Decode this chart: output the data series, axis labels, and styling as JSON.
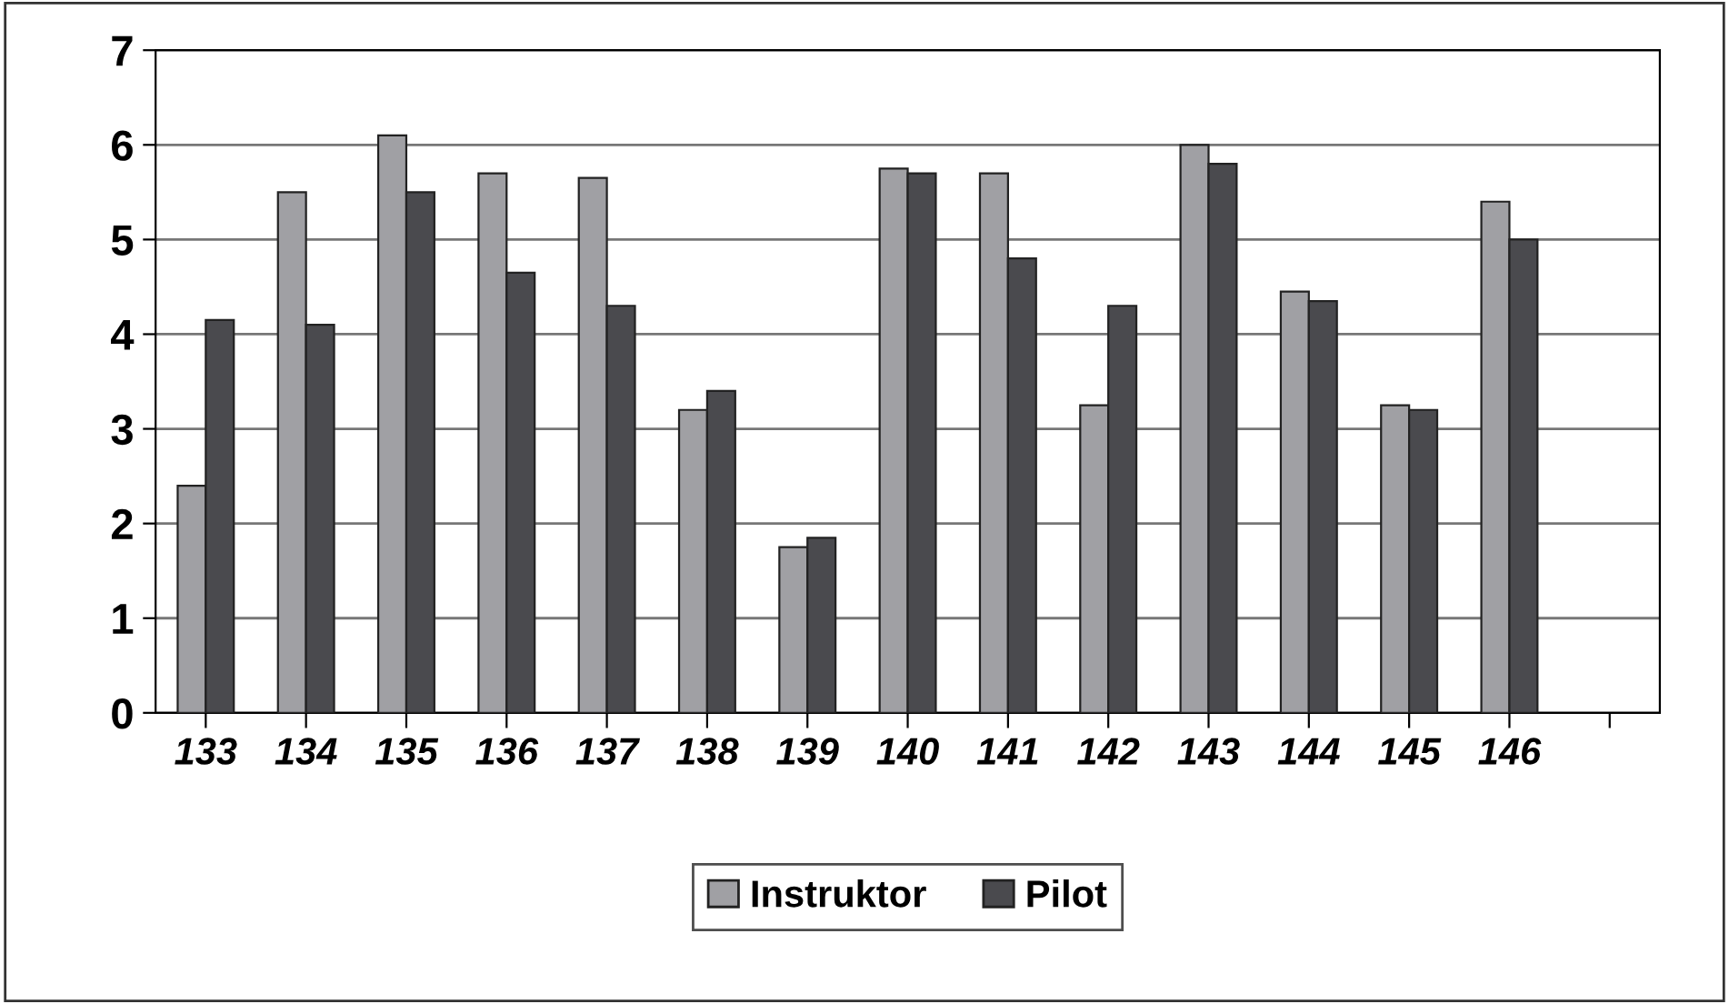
{
  "chart_data": {
    "type": "bar",
    "categories": [
      "133",
      "134",
      "135",
      "136",
      "137",
      "138",
      "139",
      "140",
      "141",
      "142",
      "143",
      "144",
      "145",
      "146",
      null
    ],
    "series": [
      {
        "name": "Instruktor",
        "color": "#a0a0a4",
        "values": [
          2.4,
          5.5,
          6.1,
          5.7,
          5.65,
          3.2,
          1.75,
          5.75,
          5.7,
          3.25,
          6.0,
          4.45,
          3.25,
          5.4,
          null
        ]
      },
      {
        "name": "Pilot",
        "color": "#4a4a4e",
        "values": [
          4.15,
          4.1,
          5.5,
          4.65,
          4.3,
          3.4,
          1.85,
          5.7,
          4.8,
          4.3,
          5.8,
          4.35,
          3.2,
          5.0,
          null
        ]
      }
    ],
    "ylim": [
      0,
      7
    ],
    "yticks": [
      0,
      1,
      2,
      3,
      4,
      5,
      6,
      7
    ],
    "grid": "y",
    "legend": "bottom"
  }
}
